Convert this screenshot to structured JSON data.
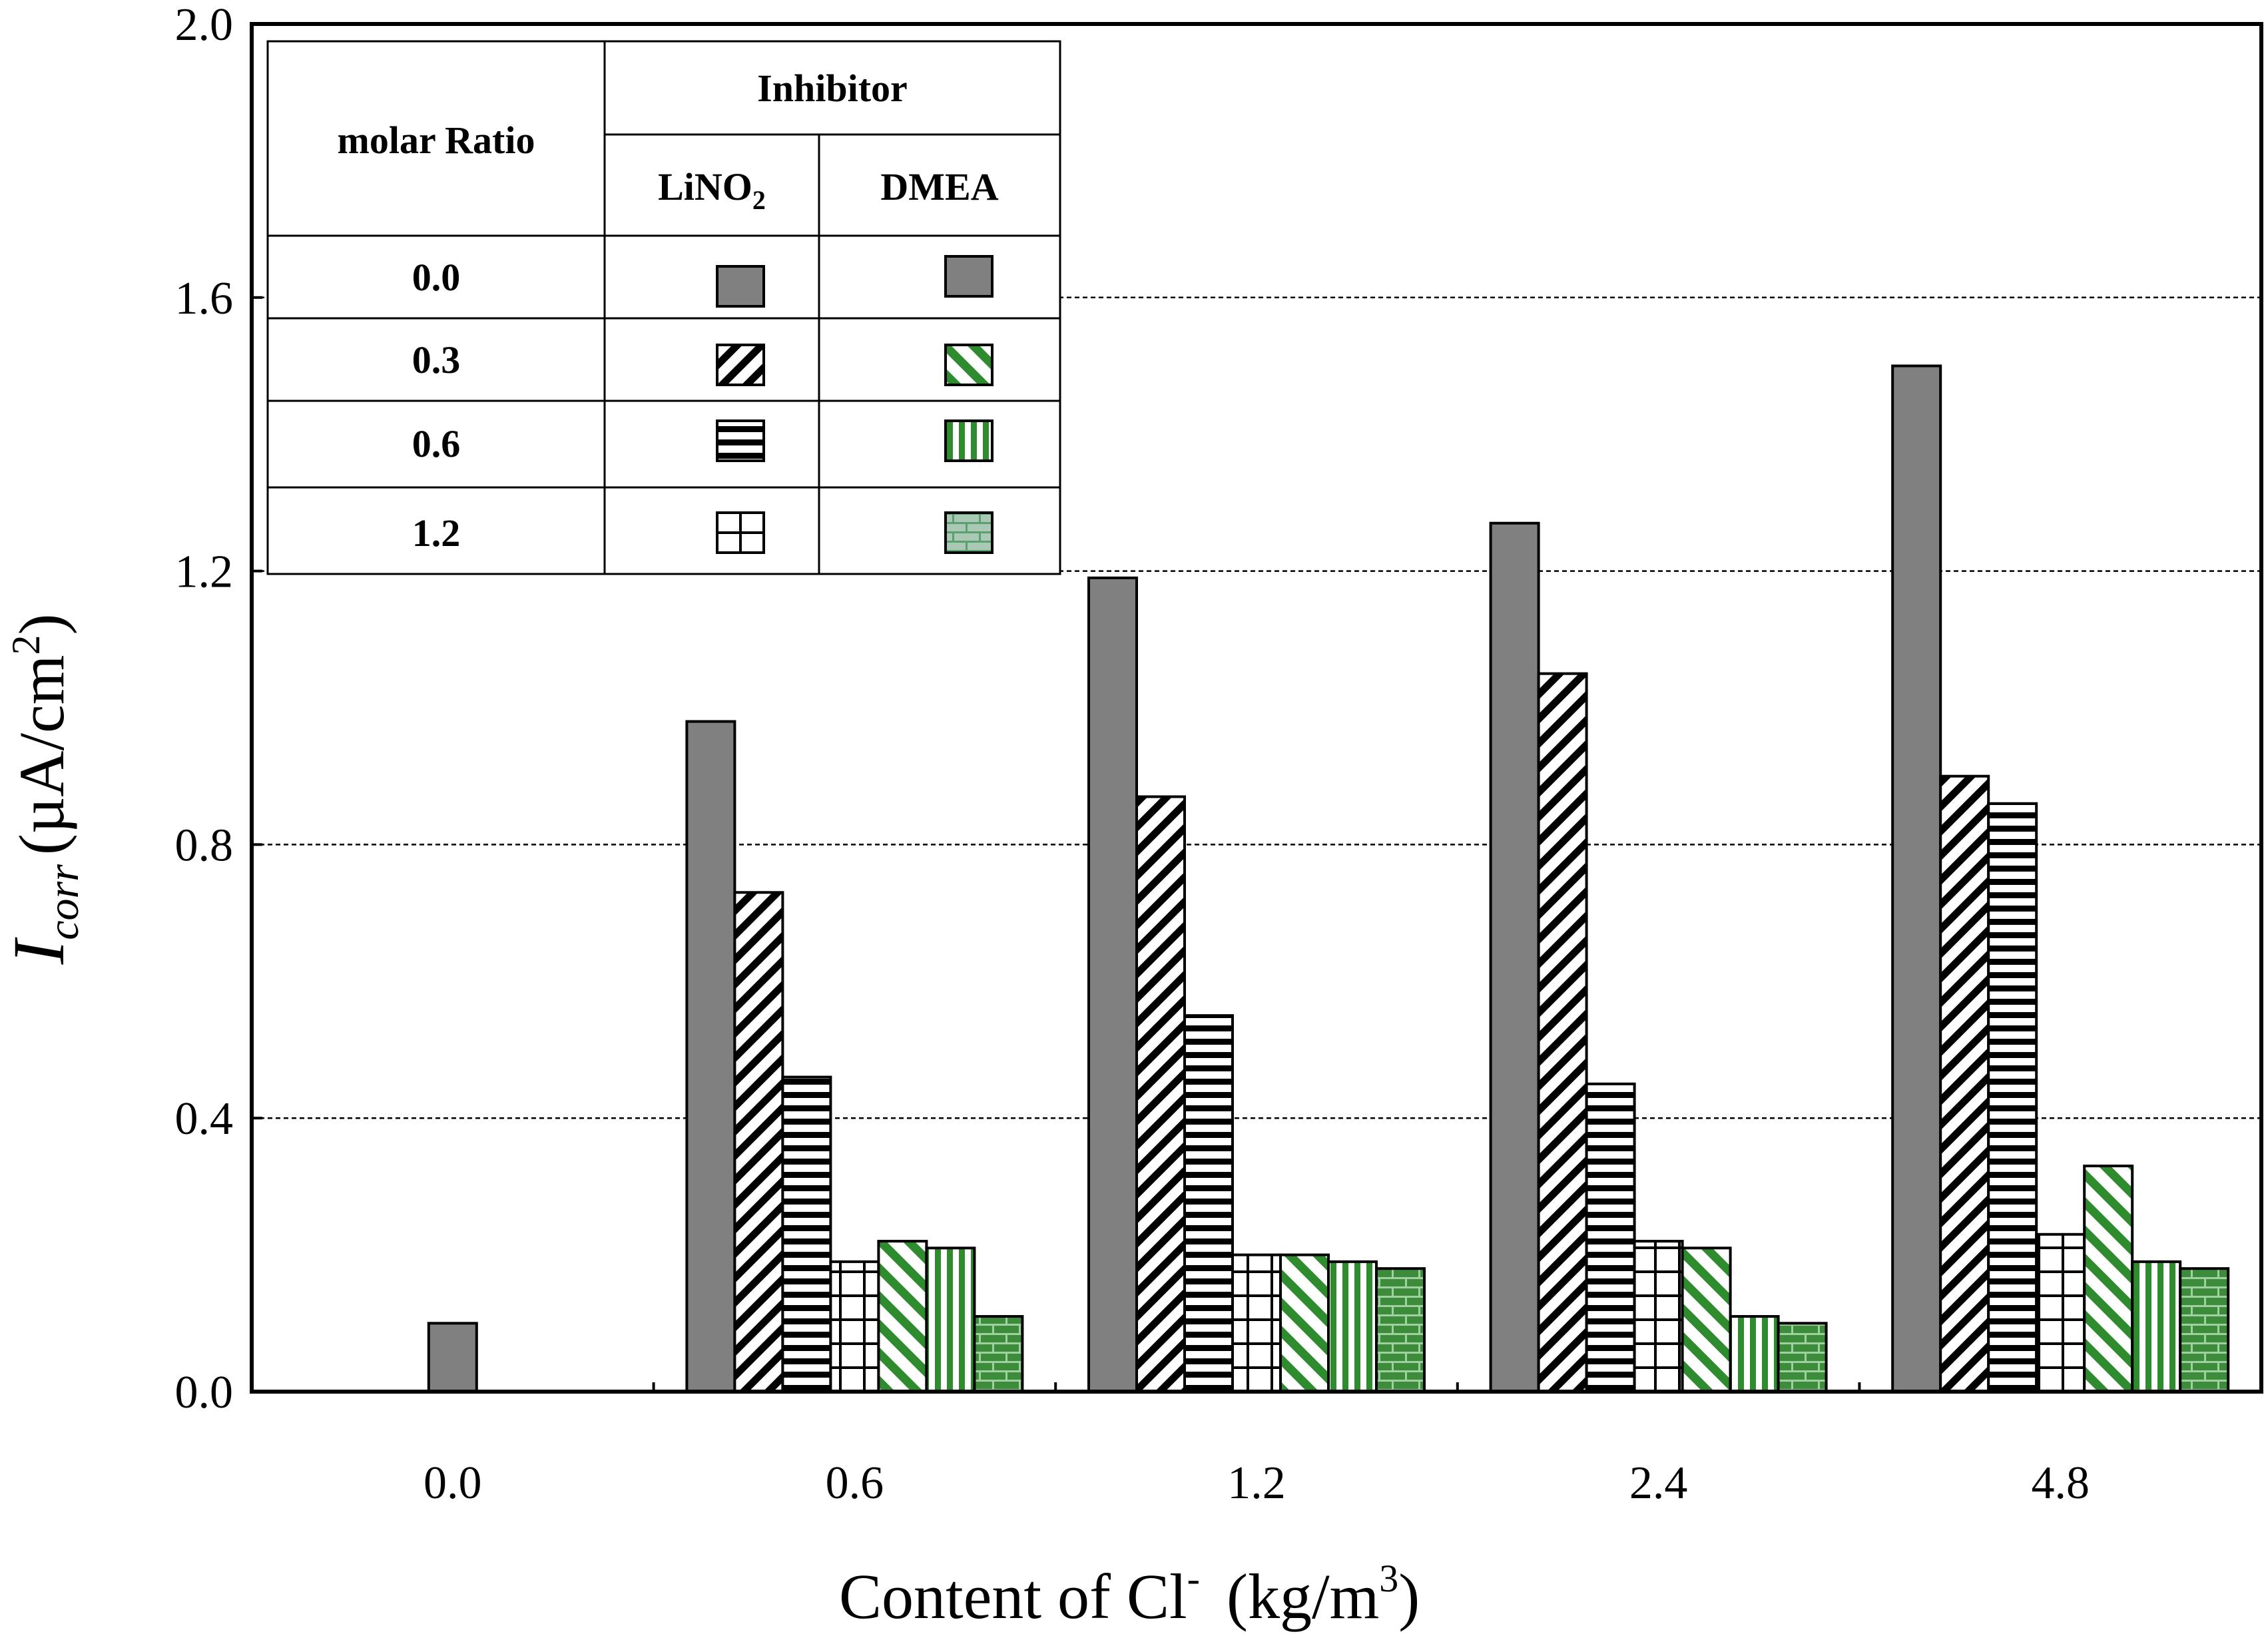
{
  "chart_data": {
    "type": "bar",
    "xlabel_main": "Content of Cl",
    "xlabel_sup": "-",
    "xlabel_unit_open": "(kg/m",
    "xlabel_unit_sup": "3",
    "xlabel_unit_close": ")",
    "ylabel_I": "I",
    "ylabel_sub": "corr",
    "ylabel_unit_open": "(µA/cm",
    "ylabel_unit_sup": "2",
    "ylabel_unit_close": ")",
    "ylim": [
      0,
      2.0
    ],
    "yticks": [
      "0.0",
      "0.4",
      "0.8",
      "1.2",
      "1.6",
      "2.0"
    ],
    "gridlines": [
      0.4,
      0.8,
      1.2,
      1.6
    ],
    "categories": [
      "0.0",
      "0.6",
      "1.2",
      "2.4",
      "4.8"
    ],
    "series": [
      {
        "name": "0.0",
        "values": [
          0.1,
          0.98,
          1.19,
          1.27,
          1.5
        ]
      },
      {
        "name": "LiNO2 0.3",
        "values": [
          null,
          0.73,
          0.87,
          1.05,
          0.9
        ]
      },
      {
        "name": "LiNO2 0.6",
        "values": [
          null,
          0.46,
          0.55,
          0.45,
          0.86
        ]
      },
      {
        "name": "LiNO2 1.2",
        "values": [
          null,
          0.19,
          0.2,
          0.22,
          0.23
        ]
      },
      {
        "name": "DMEA 0.3",
        "values": [
          null,
          0.22,
          0.2,
          0.21,
          0.33
        ]
      },
      {
        "name": "DMEA 0.6",
        "values": [
          null,
          0.21,
          0.19,
          0.11,
          0.19
        ]
      },
      {
        "name": "DMEA 1.2",
        "values": [
          null,
          0.11,
          0.18,
          0.1,
          0.18
        ]
      }
    ],
    "legend": {
      "header_ratio": "molar Ratio",
      "header_inhibitor": "Inhibitor",
      "col1_base": "LiNO",
      "col1_sub": "2",
      "col2": "DMEA",
      "rows": [
        "0.0",
        "0.3",
        "0.6",
        "1.2"
      ]
    }
  }
}
